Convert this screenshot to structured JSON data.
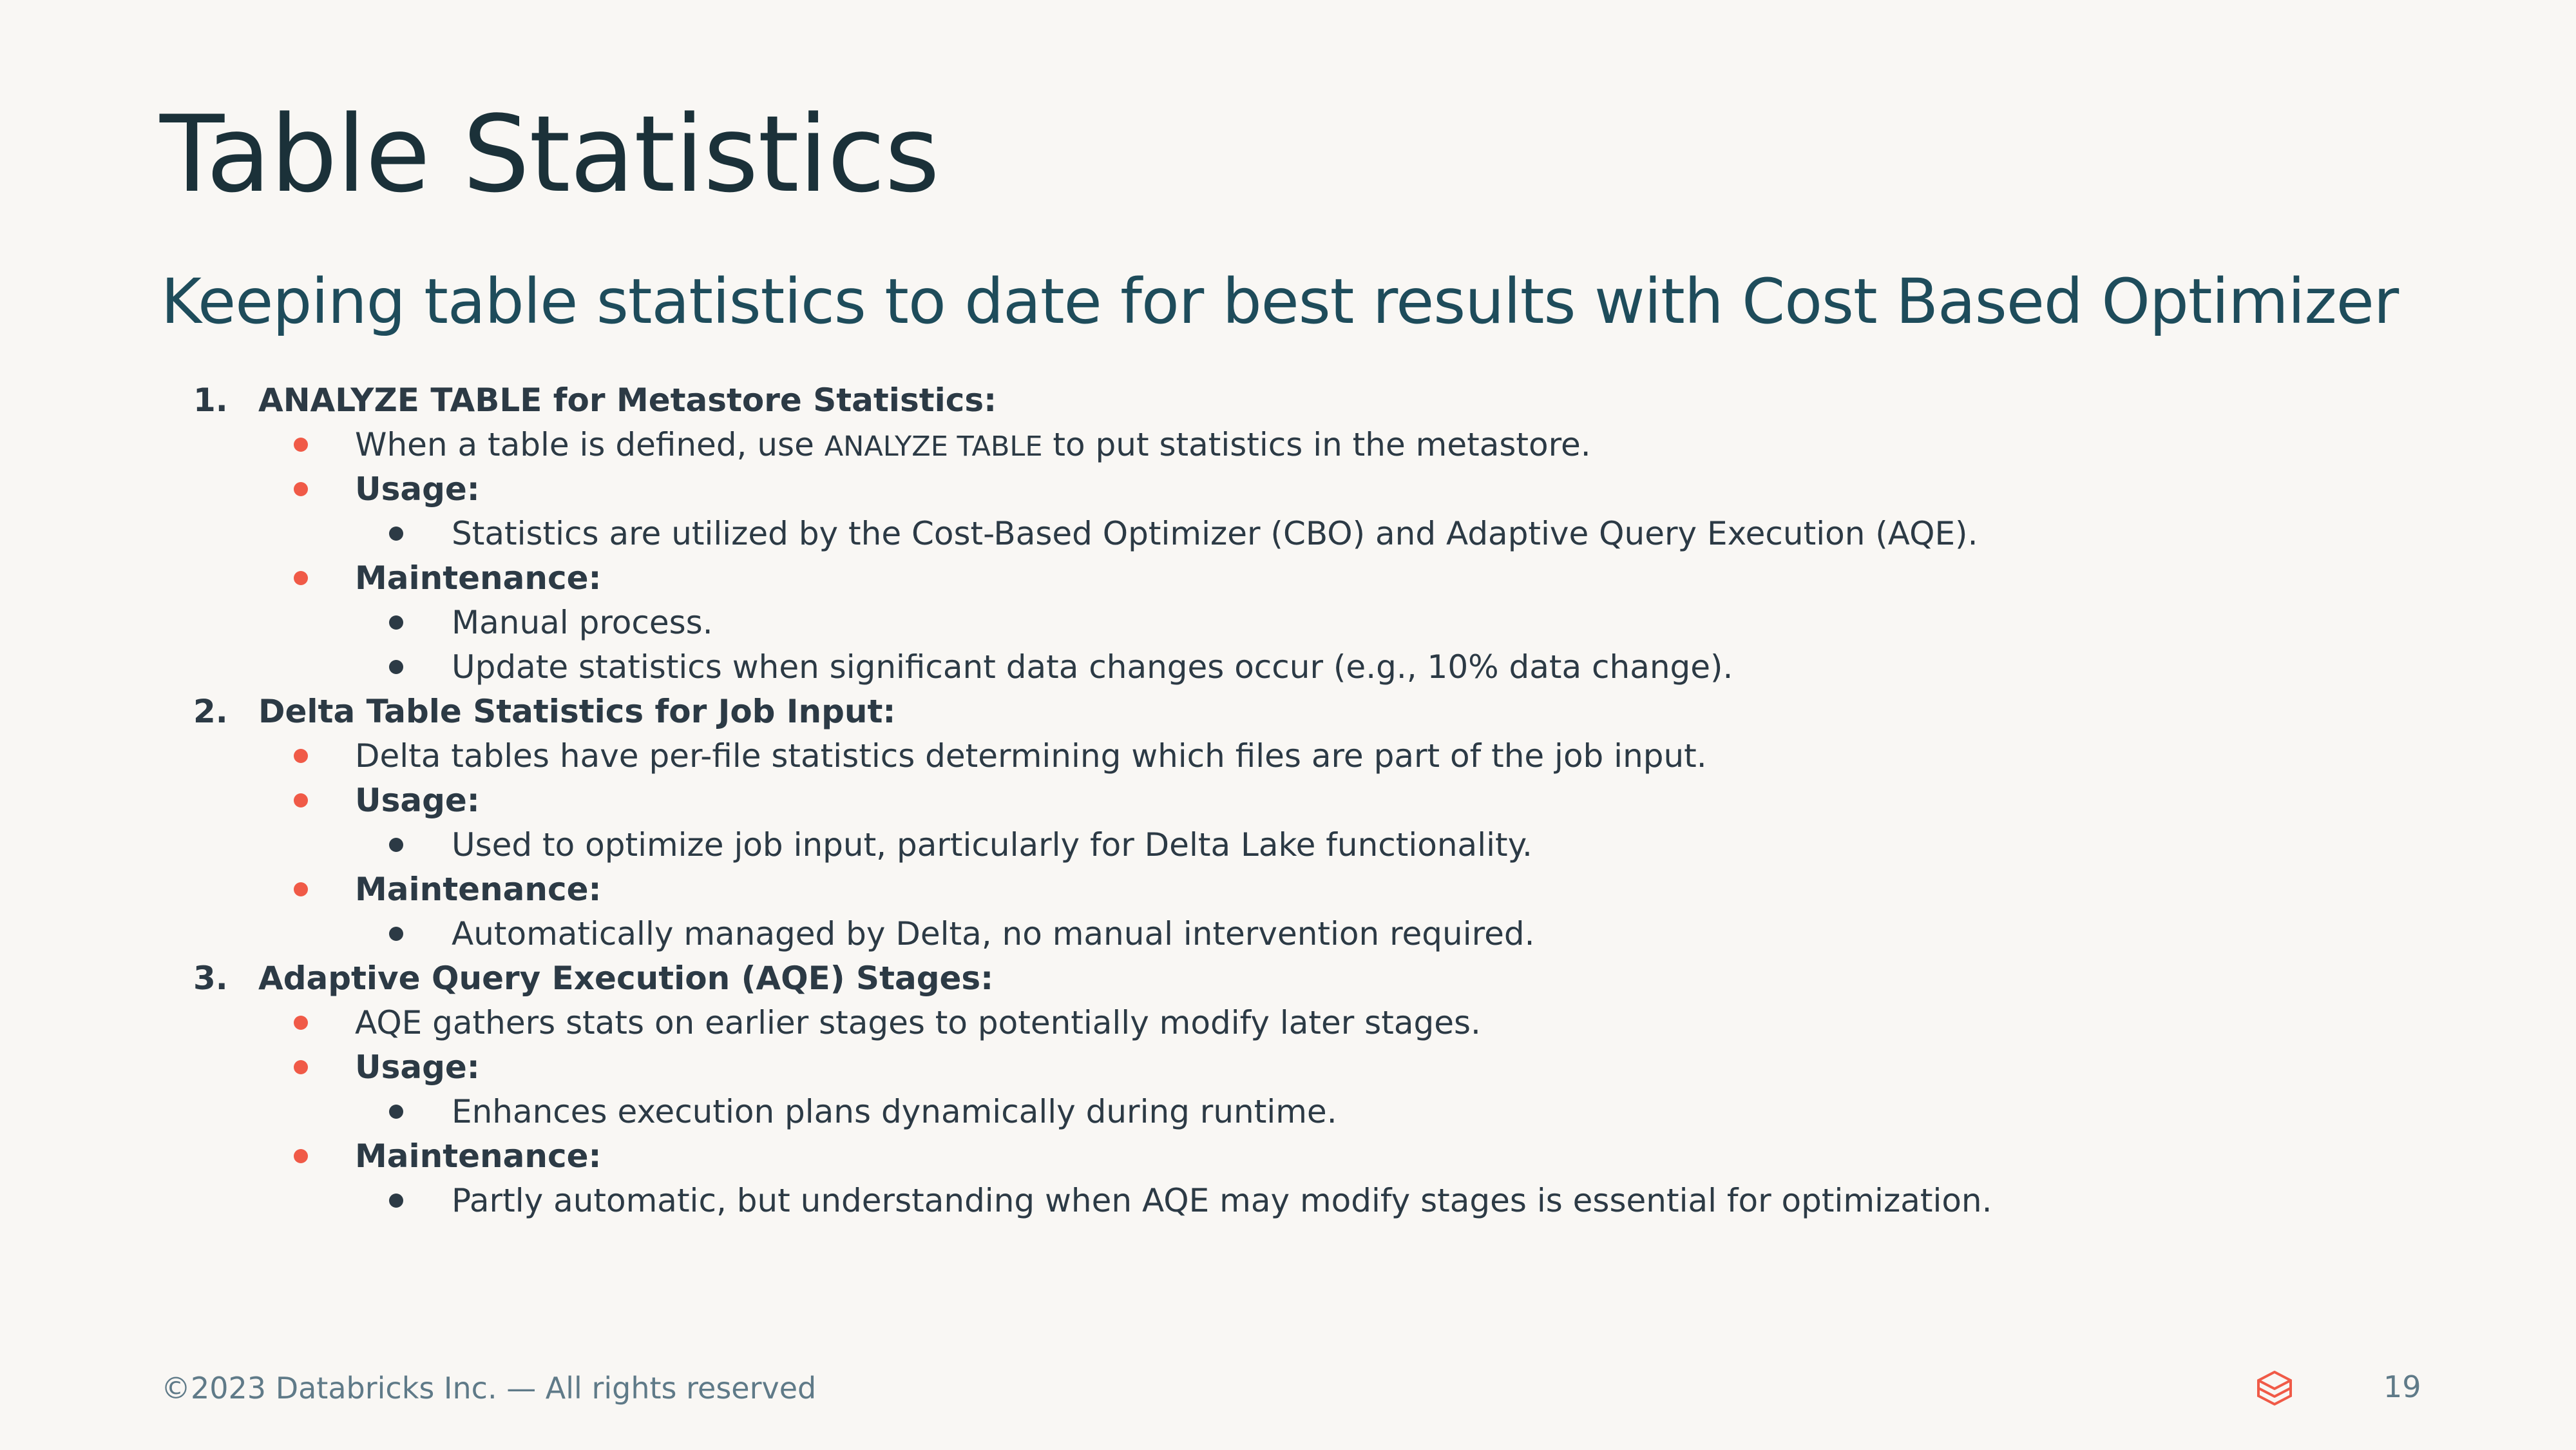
{
  "slide": {
    "title": "Table Statistics",
    "subtitle": "Keeping table statistics to date for best results with Cost Based Optimizer"
  },
  "sections": [
    {
      "number": "1.",
      "heading": "ANALYZE TABLE for Metastore Statistics:",
      "description_before": "When a table is defined, use ",
      "description_code": "ANALYZE TABLE",
      "description_after": " to put statistics in the metastore.",
      "usage_label": "Usage:",
      "usage_items": [
        "Statistics are utilized by the Cost-Based Optimizer (CBO) and Adaptive Query Execution (AQE)."
      ],
      "maintenance_label": "Maintenance:",
      "maintenance_items": [
        "Manual process.",
        "Update statistics when significant data changes occur (e.g., 10% data change)."
      ]
    },
    {
      "number": "2.",
      "heading": "Delta Table Statistics for Job Input:",
      "description": "Delta tables have per-file statistics determining which files are part of the job input.",
      "usage_label": "Usage:",
      "usage_items": [
        "Used to optimize job input, particularly for Delta Lake functionality."
      ],
      "maintenance_label": "Maintenance:",
      "maintenance_items": [
        "Automatically managed by Delta, no manual intervention required."
      ]
    },
    {
      "number": "3.",
      "heading": "Adaptive Query Execution (AQE) Stages:",
      "description": "AQE gathers stats on earlier stages to potentially modify later stages.",
      "usage_label": "Usage:",
      "usage_items": [
        "Enhances execution plans dynamically during runtime."
      ],
      "maintenance_label": "Maintenance:",
      "maintenance_items": [
        "Partly automatic, but understanding when AQE may modify stages is essential for optimization."
      ]
    }
  ],
  "footer": {
    "copyright": "©2023 Databricks Inc. — All rights reserved",
    "page_number": "19",
    "logo_icon": "databricks-logo-icon"
  },
  "colors": {
    "background": "#F9F7F4",
    "title": "#1B3139",
    "subtitle": "#1E4C5B",
    "body_text": "#2C3A45",
    "accent_bullet": "#F05A47",
    "footer_text": "#5F7A88",
    "logo": "#F05A47"
  }
}
